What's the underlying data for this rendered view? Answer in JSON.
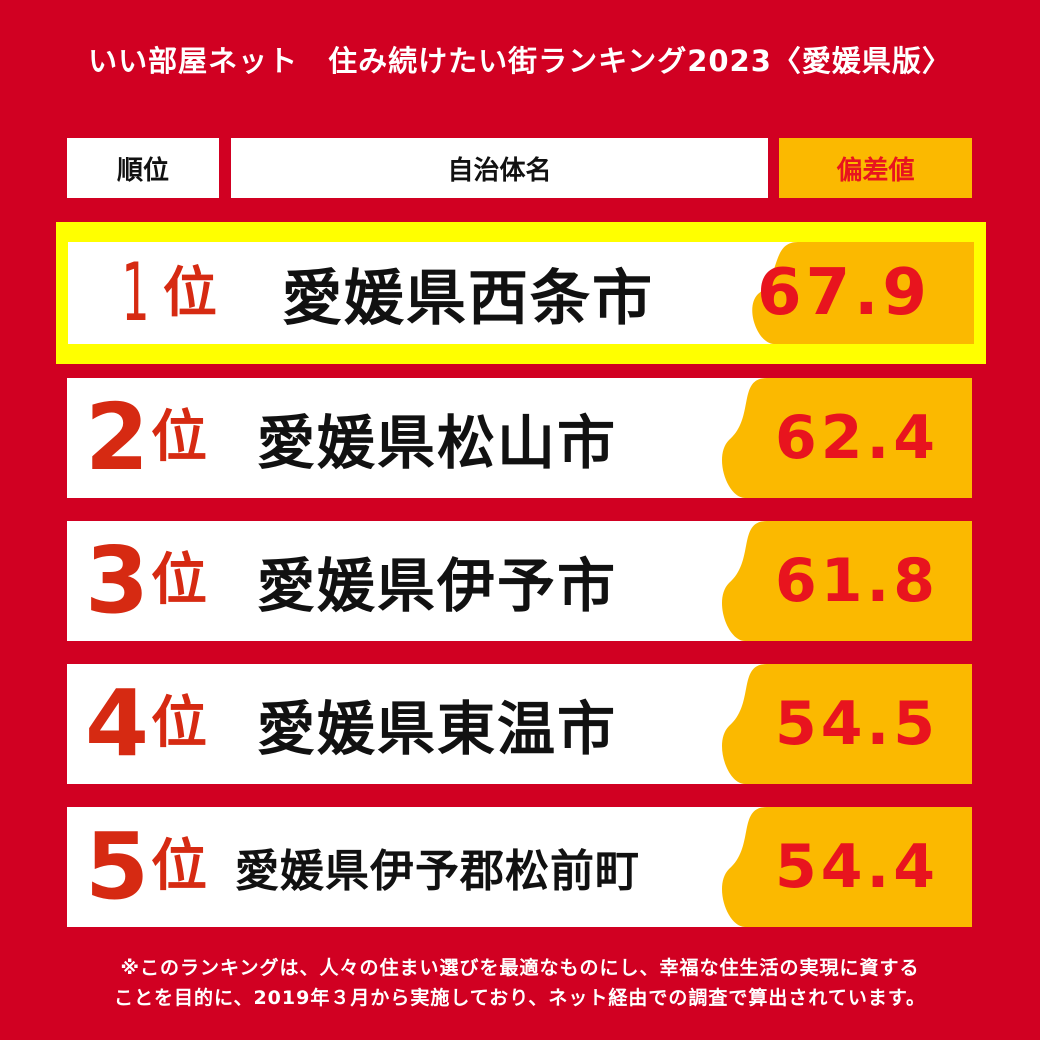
{
  "title": "いい部屋ネット　住み続けたい街ランキング2023〈愛媛県版〉",
  "headers": {
    "rank": "順位",
    "name": "自治体名",
    "score": "偏差値"
  },
  "rank_unit": "位",
  "rows": [
    {
      "rank": "1",
      "name": "愛媛県西条市",
      "score": "67.9"
    },
    {
      "rank": "2",
      "name": "愛媛県松山市",
      "score": "62.4"
    },
    {
      "rank": "3",
      "name": "愛媛県伊予市",
      "score": "61.8"
    },
    {
      "rank": "4",
      "name": "愛媛県東温市",
      "score": "54.5"
    },
    {
      "rank": "5",
      "name": "愛媛県伊予郡松前町",
      "score": "54.4"
    }
  ],
  "footnote": {
    "line1": "※このランキングは、人々の住まい選びを最適なものにし、幸福な住生活の実現に資する",
    "line2": "ことを目的に、2019年３月から実施しており、ネット経由での調査で算出されています。"
  },
  "colors": {
    "background": "#d10022",
    "accent": "#fbb900",
    "highlight": "#ffff00",
    "score_text": "#e8141e",
    "rank_text": "#d62a12"
  }
}
